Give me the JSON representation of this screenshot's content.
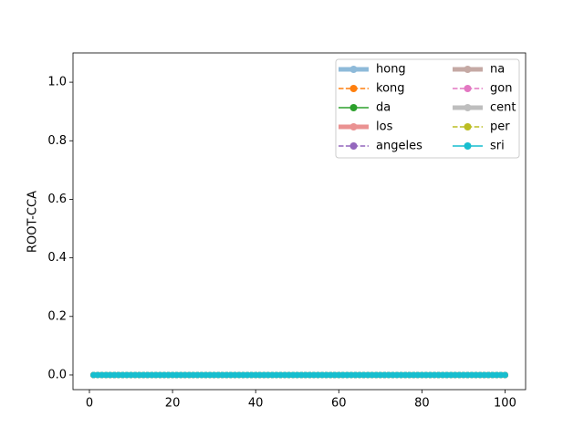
{
  "chart_data": {
    "type": "line",
    "ylabel": "ROOT-CCA",
    "x": [
      1,
      2,
      3,
      4,
      5,
      6,
      7,
      8,
      9,
      10,
      11,
      12,
      13,
      14,
      15,
      16,
      17,
      18,
      19,
      20,
      21,
      22,
      23,
      24,
      25,
      26,
      27,
      28,
      29,
      30,
      31,
      32,
      33,
      34,
      35,
      36,
      37,
      38,
      39,
      40,
      41,
      42,
      43,
      44,
      45,
      46,
      47,
      48,
      49,
      50,
      51,
      52,
      53,
      54,
      55,
      56,
      57,
      58,
      59,
      60,
      61,
      62,
      63,
      64,
      65,
      66,
      67,
      68,
      69,
      70,
      71,
      72,
      73,
      74,
      75,
      76,
      77,
      78,
      79,
      80,
      81,
      82,
      83,
      84,
      85,
      86,
      87,
      88,
      89,
      90,
      91,
      92,
      93,
      94,
      95,
      96,
      97,
      98,
      99,
      100
    ],
    "xlim": [
      -3.95,
      104.95
    ],
    "xticks": [
      0,
      20,
      40,
      60,
      80,
      100
    ],
    "ylim": [
      -0.05,
      1.1
    ],
    "yticks": [
      {
        "value": 0,
        "label": "0.0"
      },
      0.2,
      0.4,
      0.6,
      0.8,
      {
        "value": 1,
        "label": "1.0"
      }
    ],
    "legend": "upper right",
    "legend_columns": 2,
    "series": [
      {
        "name": "hong",
        "color": "#1f77b4",
        "style": "solid",
        "width": 5,
        "alpha": 0.5,
        "values": [
          0,
          0,
          0,
          0,
          0,
          0,
          0,
          0,
          0,
          0,
          0,
          0,
          0,
          0,
          0,
          0,
          0,
          0,
          0,
          0,
          0,
          0,
          0,
          0,
          0,
          0,
          0,
          0,
          0,
          0,
          0,
          0,
          0,
          0,
          0,
          0,
          0,
          0,
          0,
          0,
          0,
          0,
          0,
          0,
          0,
          0,
          0,
          0,
          0,
          0,
          0,
          0,
          0,
          0,
          0,
          0,
          0,
          0,
          0,
          0,
          0,
          0,
          0,
          0,
          0,
          0,
          0,
          0,
          0,
          0,
          0,
          0,
          0,
          0,
          0,
          0,
          0,
          0,
          0,
          0,
          0,
          0,
          0,
          0,
          0,
          0,
          0,
          0,
          0,
          0,
          0,
          0,
          0,
          0,
          0,
          0,
          0,
          0,
          0,
          0
        ]
      },
      {
        "name": "kong",
        "color": "#ff7f0e",
        "style": "dashed",
        "width": 1.5,
        "alpha": 1,
        "values": [
          0,
          0,
          0,
          0,
          0,
          0,
          0,
          0,
          0,
          0,
          0,
          0,
          0,
          0,
          0,
          0,
          0,
          0,
          0,
          0,
          0,
          0,
          0,
          0,
          0,
          0,
          0,
          0,
          0,
          0,
          0,
          0,
          0,
          0,
          0,
          0,
          0,
          0,
          0,
          0,
          0,
          0,
          0,
          0,
          0,
          0,
          0,
          0,
          0,
          0,
          0,
          0,
          0,
          0,
          0,
          0,
          0,
          0,
          0,
          0,
          0,
          0,
          0,
          0,
          0,
          0,
          0,
          0,
          0,
          0,
          0,
          0,
          0,
          0,
          0,
          0,
          0,
          0,
          0,
          0,
          0,
          0,
          0,
          0,
          0,
          0,
          0,
          0,
          0,
          0,
          0,
          0,
          0,
          0,
          0,
          0,
          0,
          0,
          0,
          0
        ]
      },
      {
        "name": "da",
        "color": "#2ca02c",
        "style": "solid",
        "width": 1.5,
        "alpha": 1,
        "values": [
          0,
          0,
          0,
          0,
          0,
          0,
          0,
          0,
          0,
          0,
          0,
          0,
          0,
          0,
          0,
          0,
          0,
          0,
          0,
          0,
          0,
          0,
          0,
          0,
          0,
          0,
          0,
          0,
          0,
          0,
          0,
          0,
          0,
          0,
          0,
          0,
          0,
          0,
          0,
          0,
          0,
          0,
          0,
          0,
          0,
          0,
          0,
          0,
          0,
          0,
          0,
          0,
          0,
          0,
          0,
          0,
          0,
          0,
          0,
          0,
          0,
          0,
          0,
          0,
          0,
          0,
          0,
          0,
          0,
          0,
          0,
          0,
          0,
          0,
          0,
          0,
          0,
          0,
          0,
          0,
          0,
          0,
          0,
          0,
          0,
          0,
          0,
          0,
          0,
          0,
          0,
          0,
          0,
          0,
          0,
          0,
          0,
          0,
          0,
          0
        ]
      },
      {
        "name": "los",
        "color": "#d62728",
        "style": "solid",
        "width": 5,
        "alpha": 0.5,
        "values": [
          0,
          0,
          0,
          0,
          0,
          0,
          0,
          0,
          0,
          0,
          0,
          0,
          0,
          0,
          0,
          0,
          0,
          0,
          0,
          0,
          0,
          0,
          0,
          0,
          0,
          0,
          0,
          0,
          0,
          0,
          0,
          0,
          0,
          0,
          0,
          0,
          0,
          0,
          0,
          0,
          0,
          0,
          0,
          0,
          0,
          0,
          0,
          0,
          0,
          0,
          0,
          0,
          0,
          0,
          0,
          0,
          0,
          0,
          0,
          0,
          0,
          0,
          0,
          0,
          0,
          0,
          0,
          0,
          0,
          0,
          0,
          0,
          0,
          0,
          0,
          0,
          0,
          0,
          0,
          0,
          0,
          0,
          0,
          0,
          0,
          0,
          0,
          0,
          0,
          0,
          0,
          0,
          0,
          0,
          0,
          0,
          0,
          0,
          0,
          0
        ]
      },
      {
        "name": "angeles",
        "color": "#9467bd",
        "style": "dashed",
        "width": 1.5,
        "alpha": 1,
        "values": [
          0,
          0,
          0,
          0,
          0,
          0,
          0,
          0,
          0,
          0,
          0,
          0,
          0,
          0,
          0,
          0,
          0,
          0,
          0,
          0,
          0,
          0,
          0,
          0,
          0,
          0,
          0,
          0,
          0,
          0,
          0,
          0,
          0,
          0,
          0,
          0,
          0,
          0,
          0,
          0,
          0,
          0,
          0,
          0,
          0,
          0,
          0,
          0,
          0,
          0,
          0,
          0,
          0,
          0,
          0,
          0,
          0,
          0,
          0,
          0,
          0,
          0,
          0,
          0,
          0,
          0,
          0,
          0,
          0,
          0,
          0,
          0,
          0,
          0,
          0,
          0,
          0,
          0,
          0,
          0,
          0,
          0,
          0,
          0,
          0,
          0,
          0,
          0,
          0,
          0,
          0,
          0,
          0,
          0,
          0,
          0,
          0,
          0,
          0,
          0
        ]
      },
      {
        "name": "na",
        "color": "#8c564b",
        "style": "solid",
        "width": 5,
        "alpha": 0.5,
        "values": [
          0,
          0,
          0,
          0,
          0,
          0,
          0,
          0,
          0,
          0,
          0,
          0,
          0,
          0,
          0,
          0,
          0,
          0,
          0,
          0,
          0,
          0,
          0,
          0,
          0,
          0,
          0,
          0,
          0,
          0,
          0,
          0,
          0,
          0,
          0,
          0,
          0,
          0,
          0,
          0,
          0,
          0,
          0,
          0,
          0,
          0,
          0,
          0,
          0,
          0,
          0,
          0,
          0,
          0,
          0,
          0,
          0,
          0,
          0,
          0,
          0,
          0,
          0,
          0,
          0,
          0,
          0,
          0,
          0,
          0,
          0,
          0,
          0,
          0,
          0,
          0,
          0,
          0,
          0,
          0,
          0,
          0,
          0,
          0,
          0,
          0,
          0,
          0,
          0,
          0,
          0,
          0,
          0,
          0,
          0,
          0,
          0,
          0,
          0,
          0
        ]
      },
      {
        "name": "gon",
        "color": "#e377c2",
        "style": "dashed",
        "width": 1.5,
        "alpha": 1,
        "values": [
          0,
          0,
          0,
          0,
          0,
          0,
          0,
          0,
          0,
          0,
          0,
          0,
          0,
          0,
          0,
          0,
          0,
          0,
          0,
          0,
          0,
          0,
          0,
          0,
          0,
          0,
          0,
          0,
          0,
          0,
          0,
          0,
          0,
          0,
          0,
          0,
          0,
          0,
          0,
          0,
          0,
          0,
          0,
          0,
          0,
          0,
          0,
          0,
          0,
          0,
          0,
          0,
          0,
          0,
          0,
          0,
          0,
          0,
          0,
          0,
          0,
          0,
          0,
          0,
          0,
          0,
          0,
          0,
          0,
          0,
          0,
          0,
          0,
          0,
          0,
          0,
          0,
          0,
          0,
          0,
          0,
          0,
          0,
          0,
          0,
          0,
          0,
          0,
          0,
          0,
          0,
          0,
          0,
          0,
          0,
          0,
          0,
          0,
          0,
          0
        ]
      },
      {
        "name": "cent",
        "color": "#7f7f7f",
        "style": "solid",
        "width": 5,
        "alpha": 0.5,
        "values": [
          0,
          0,
          0,
          0,
          0,
          0,
          0,
          0,
          0,
          0,
          0,
          0,
          0,
          0,
          0,
          0,
          0,
          0,
          0,
          0,
          0,
          0,
          0,
          0,
          0,
          0,
          0,
          0,
          0,
          0,
          0,
          0,
          0,
          0,
          0,
          0,
          0,
          0,
          0,
          0,
          0,
          0,
          0,
          0,
          0,
          0,
          0,
          0,
          0,
          0,
          0,
          0,
          0,
          0,
          0,
          0,
          0,
          0,
          0,
          0,
          0,
          0,
          0,
          0,
          0,
          0,
          0,
          0,
          0,
          0,
          0,
          0,
          0,
          0,
          0,
          0,
          0,
          0,
          0,
          0,
          0,
          0,
          0,
          0,
          0,
          0,
          0,
          0,
          0,
          0,
          0,
          0,
          0,
          0,
          0,
          0,
          0,
          0,
          0,
          0
        ]
      },
      {
        "name": "per",
        "color": "#bcbd22",
        "style": "dashed",
        "width": 1.5,
        "alpha": 1,
        "values": [
          0,
          0,
          0,
          0,
          0,
          0,
          0,
          0,
          0,
          0,
          0,
          0,
          0,
          0,
          0,
          0,
          0,
          0,
          0,
          0,
          0,
          0,
          0,
          0,
          0,
          0,
          0,
          0,
          0,
          0,
          0,
          0,
          0,
          0,
          0,
          0,
          0,
          0,
          0,
          0,
          0,
          0,
          0,
          0,
          0,
          0,
          0,
          0,
          0,
          0,
          0,
          0,
          0,
          0,
          0,
          0,
          0,
          0,
          0,
          0,
          0,
          0,
          0,
          0,
          0,
          0,
          0,
          0,
          0,
          0,
          0,
          0,
          0,
          0,
          0,
          0,
          0,
          0,
          0,
          0,
          0,
          0,
          0,
          0,
          0,
          0,
          0,
          0,
          0,
          0,
          0,
          0,
          0,
          0,
          0,
          0,
          0,
          0,
          0,
          0
        ]
      },
      {
        "name": "sri",
        "color": "#17becf",
        "style": "solid",
        "width": 1.5,
        "alpha": 1,
        "values": [
          0,
          0,
          0,
          0,
          0,
          0,
          0,
          0,
          0,
          0,
          0,
          0,
          0,
          0,
          0,
          0,
          0,
          0,
          0,
          0,
          0,
          0,
          0,
          0,
          0,
          0,
          0,
          0,
          0,
          0,
          0,
          0,
          0,
          0,
          0,
          0,
          0,
          0,
          0,
          0,
          0,
          0,
          0,
          0,
          0,
          0,
          0,
          0,
          0,
          0,
          0,
          0,
          0,
          0,
          0,
          0,
          0,
          0,
          0,
          0,
          0,
          0,
          0,
          0,
          0,
          0,
          0,
          0,
          0,
          0,
          0,
          0,
          0,
          0,
          0,
          0,
          0,
          0,
          0,
          0,
          0,
          0,
          0,
          0,
          0,
          0,
          0,
          0,
          0,
          0,
          0,
          0,
          0,
          0,
          0,
          0,
          0,
          0,
          0,
          0
        ]
      }
    ]
  }
}
